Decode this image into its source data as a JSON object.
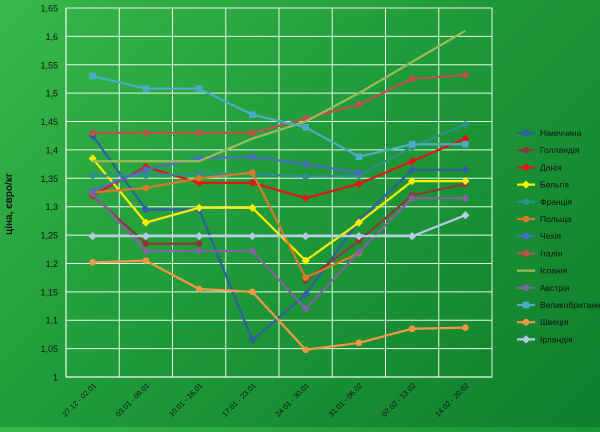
{
  "chart_data": {
    "type": "line",
    "title": "",
    "xlabel": "",
    "ylabel": "ціна, євро/кг",
    "ylim": [
      1,
      1.65
    ],
    "yticks": [
      "1",
      "1,05",
      "1,1",
      "1,15",
      "1,2",
      "1,25",
      "1,3",
      "1,35",
      "1,4",
      "1,45",
      "1,5",
      "1,55",
      "1,6",
      "1,65"
    ],
    "categories": [
      "27.12 - 02.01",
      "03.01 - 09.01",
      "10.01 - 16.01",
      "17.01 - 23.01",
      "24.01 - 30.01",
      "31.01 - 06.02",
      "07.02 - 13.02",
      "14.02 - 20.02"
    ],
    "grid": true,
    "legend_position": "right",
    "series": [
      {
        "name": "Німеччина",
        "color": "#2f5f9e",
        "marker": "diamond",
        "values": [
          1.425,
          1.295,
          1.295,
          1.065,
          1.145,
          1.275,
          1.365,
          1.365
        ]
      },
      {
        "name": "Голландія",
        "color": "#8b3a3a",
        "marker": "circle",
        "values": [
          1.32,
          1.235,
          1.235,
          null,
          1.17,
          1.24,
          1.32,
          1.34
        ]
      },
      {
        "name": "Данія",
        "color": "#e01515",
        "marker": "diamond",
        "values": [
          1.32,
          1.37,
          1.342,
          1.342,
          1.315,
          1.34,
          1.38,
          1.42
        ]
      },
      {
        "name": "Бельгія",
        "color": "#ffee00",
        "marker": "diamond",
        "values": [
          1.385,
          1.272,
          1.298,
          1.298,
          1.205,
          1.272,
          1.345,
          1.345
        ]
      },
      {
        "name": "Франція",
        "color": "#2e8f8f",
        "marker": "circle",
        "values": [
          1.355,
          1.355,
          1.358,
          1.358,
          1.353,
          1.355,
          1.405,
          1.445
        ]
      },
      {
        "name": "Польща",
        "color": "#d97a2b",
        "marker": "circle",
        "values": [
          1.325,
          1.333,
          1.35,
          1.36,
          1.175,
          1.218,
          null,
          null
        ]
      },
      {
        "name": "Чехія",
        "color": "#4a6fc0",
        "marker": "circle",
        "values": [
          1.328,
          1.365,
          1.385,
          1.388,
          1.375,
          1.36,
          null,
          null
        ]
      },
      {
        "name": "Італія",
        "color": "#c0504d",
        "marker": "circle",
        "values": [
          1.43,
          1.43,
          1.43,
          1.43,
          1.455,
          1.48,
          1.525,
          1.532
        ]
      },
      {
        "name": "Іспанія",
        "color": "#9bbb59",
        "marker": "none",
        "values": [
          1.38,
          1.38,
          1.38,
          1.42,
          1.45,
          1.5,
          1.555,
          1.61
        ]
      },
      {
        "name": "Австрія",
        "color": "#8064a2",
        "marker": "diamond",
        "values": [
          1.323,
          1.222,
          1.222,
          1.222,
          1.12,
          1.22,
          1.315,
          1.315
        ]
      },
      {
        "name": "Великобританія",
        "color": "#4bacc6",
        "marker": "square",
        "values": [
          1.53,
          1.508,
          1.508,
          1.462,
          1.44,
          1.388,
          1.41,
          1.41
        ]
      },
      {
        "name": "Швеція",
        "color": "#f79646",
        "marker": "circle",
        "values": [
          1.202,
          1.205,
          1.155,
          1.15,
          1.048,
          1.06,
          1.085,
          1.087
        ]
      },
      {
        "name": "Ірландія",
        "color": "#b7c9e8",
        "marker": "diamond",
        "values": [
          1.248,
          1.248,
          1.248,
          1.248,
          1.248,
          1.248,
          1.248,
          1.285
        ]
      }
    ]
  }
}
